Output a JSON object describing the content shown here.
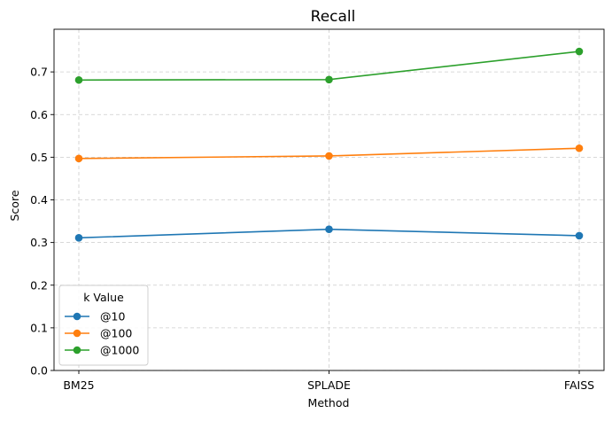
{
  "chart_data": {
    "type": "line",
    "title": "Recall",
    "xlabel": "Method",
    "ylabel": "Score",
    "categories": [
      "BM25",
      "SPLADE",
      "FAISS"
    ],
    "ylim": [
      0,
      0.8
    ],
    "yticks": [
      0.0,
      0.1,
      0.2,
      0.3,
      0.4,
      0.5,
      0.6,
      0.7
    ],
    "ytick_labels": [
      "0.0",
      "0.1",
      "0.2",
      "0.3",
      "0.4",
      "0.5",
      "0.6",
      "0.7"
    ],
    "grid": true,
    "legend": {
      "title": "k Value",
      "placement": "lower-left"
    },
    "series": [
      {
        "name": "@10",
        "values": [
          0.311,
          0.331,
          0.316
        ],
        "color": "#1f77b4"
      },
      {
        "name": "@100",
        "values": [
          0.497,
          0.503,
          0.521
        ],
        "color": "#ff7f0e"
      },
      {
        "name": "@1000",
        "values": [
          0.681,
          0.682,
          0.748
        ],
        "color": "#2ca02c"
      }
    ]
  }
}
